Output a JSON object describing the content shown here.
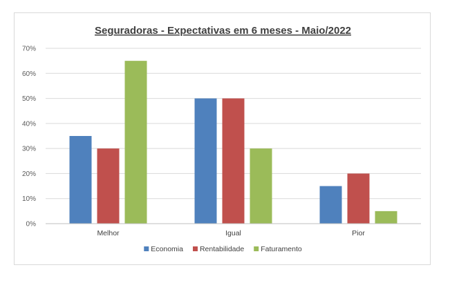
{
  "chart_data": {
    "type": "bar",
    "title": "Seguradoras - Expectativas em 6 meses - Maio/2022",
    "categories": [
      "Melhor",
      "Igual",
      "Pior"
    ],
    "series": [
      {
        "name": "Economia",
        "color": "#4f81bd",
        "values": [
          35,
          50,
          15
        ]
      },
      {
        "name": "Rentabilidade",
        "color": "#c0504d",
        "values": [
          30,
          50,
          20
        ]
      },
      {
        "name": "Faturamento",
        "color": "#9bbb59",
        "values": [
          65,
          30,
          5
        ]
      }
    ],
    "ylim": [
      0,
      70
    ],
    "yticks": [
      0,
      10,
      20,
      30,
      40,
      50,
      60,
      70
    ],
    "ytick_labels": [
      "0%",
      "10%",
      "20%",
      "30%",
      "40%",
      "50%",
      "60%",
      "70%"
    ],
    "xlabel": "",
    "ylabel": "",
    "grid": true,
    "legend_position": "bottom"
  }
}
